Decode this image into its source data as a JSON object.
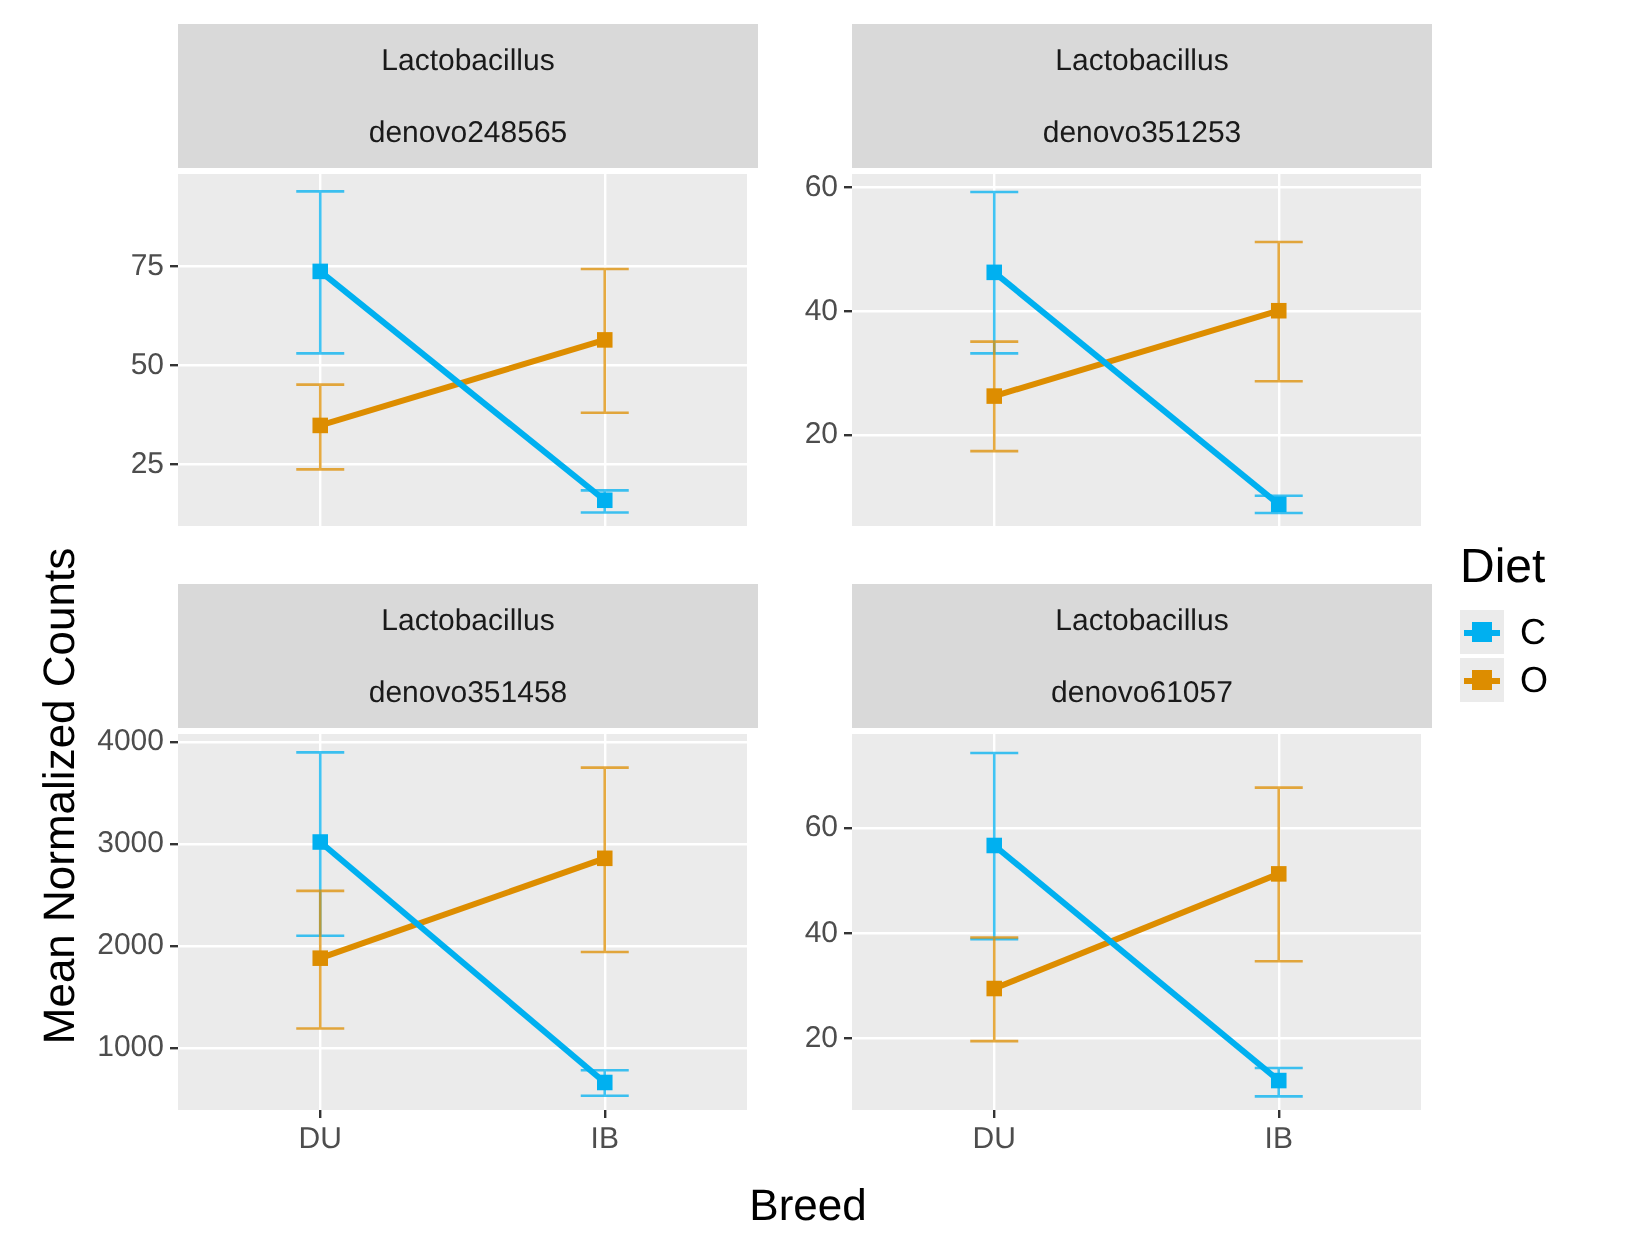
{
  "chart_data": [
    {
      "type": "line",
      "title": "Lactobacillus",
      "subtitle": "denovo248565",
      "ylabel": "Mean Normalized Counts",
      "legend": "right",
      "legend_title": "Diet",
      "categories": [
        null,
        null
      ],
      "ylim": [
        9.5,
        98.4
      ],
      "yticks": [
        25,
        50,
        75
      ],
      "grid": true,
      "marker": "square",
      "tick_labels": "y",
      "series": [
        {
          "name": "C",
          "color": "#00b0f0",
          "values": [
            73.8,
            16
          ],
          "errors": [
            [
              53.1,
              94
            ],
            [
              12.9,
              18.5
            ]
          ]
        },
        {
          "name": "O",
          "color": "#dd8d00",
          "values": [
            34.9,
            56.5
          ],
          "errors": [
            [
              23.8,
              45.2
            ],
            [
              38.1,
              74.4
            ]
          ]
        }
      ]
    },
    {
      "type": "line",
      "title": "Lactobacillus",
      "subtitle": "denovo351253",
      "categories": [
        null,
        null
      ],
      "ylim": [
        5.3,
        62.2
      ],
      "yticks": [
        20,
        40,
        60
      ],
      "grid": true,
      "marker": "square",
      "tick_labels": "y",
      "series": [
        {
          "color": "#00b0f0",
          "values": [
            46.3,
            8.8
          ],
          "errors": [
            [
              33.2,
              59.3
            ],
            [
              7.4,
              10.2
            ]
          ]
        },
        {
          "color": "#dd8d00",
          "values": [
            26.3,
            40.1
          ],
          "errors": [
            [
              17.4,
              35.1
            ],
            [
              28.7,
              51.2
            ]
          ]
        }
      ]
    },
    {
      "type": "line",
      "title": "Lactobacillus",
      "subtitle": "denovo351458",
      "xlabel": "Breed",
      "categories": [
        "DU",
        "IB"
      ],
      "ylim": [
        390,
        4080
      ],
      "yticks": [
        1000,
        2000,
        3000,
        4000
      ],
      "grid": true,
      "marker": "square",
      "series": [
        {
          "color": "#00b0f0",
          "values": [
            3020,
            660
          ],
          "errors": [
            [
              2100,
              3900
            ],
            [
              530,
              780
            ]
          ]
        },
        {
          "color": "#dd8d00",
          "values": [
            1880,
            2860
          ],
          "errors": [
            [
              1190,
              2540
            ],
            [
              1940,
              3750
            ]
          ]
        }
      ]
    },
    {
      "type": "line",
      "title": "Lactobacillus",
      "subtitle": "denovo61057",
      "categories": [
        "DU",
        "IB"
      ],
      "ylim": [
        6.4,
        77.9
      ],
      "yticks": [
        20,
        40,
        60
      ],
      "grid": true,
      "marker": "square",
      "series": [
        {
          "color": "#00b0f0",
          "values": [
            56.7,
            12
          ],
          "errors": [
            [
              38.9,
              74.3
            ],
            [
              9,
              14.4
            ]
          ]
        },
        {
          "color": "#dd8d00",
          "values": [
            29.5,
            51.3
          ],
          "errors": [
            [
              19.5,
              39.2
            ],
            [
              34.7,
              67.7
            ]
          ]
        }
      ]
    }
  ]
}
